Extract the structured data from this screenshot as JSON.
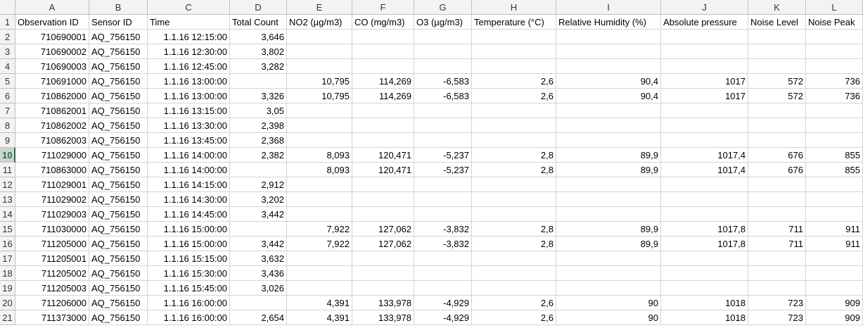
{
  "columns": [
    "A",
    "B",
    "C",
    "D",
    "E",
    "F",
    "G",
    "H",
    "I",
    "J",
    "K",
    "L"
  ],
  "row_numbers": [
    1,
    2,
    3,
    4,
    5,
    6,
    7,
    8,
    9,
    10,
    11,
    12,
    13,
    14,
    15,
    16,
    17,
    18,
    19,
    20,
    21
  ],
  "table": {
    "header": [
      "Observation ID",
      "Sensor ID",
      "Time",
      "Total Count",
      "NO2 (µg/m3)",
      "CO (mg/m3)",
      "O3 (µg/m3)",
      "Temperature (°C)",
      "Relative Humidity (%)",
      "Absolute pressure",
      "Noise Level",
      "Noise Peak"
    ],
    "rows": [
      [
        "710690001",
        "AQ_756150",
        "1.1.16 12:15:00",
        "3,646",
        null,
        null,
        null,
        null,
        null,
        null,
        null,
        null
      ],
      [
        "710690002",
        "AQ_756150",
        "1.1.16 12:30:00",
        "3,802",
        null,
        null,
        null,
        null,
        null,
        null,
        null,
        null
      ],
      [
        "710690003",
        "AQ_756150",
        "1.1.16 12:45:00",
        "3,282",
        null,
        null,
        null,
        null,
        null,
        null,
        null,
        null
      ],
      [
        "710691000",
        "AQ_756150",
        "1.1.16 13:00:00",
        null,
        "10,795",
        "114,269",
        "-6,583",
        "2,6",
        "90,4",
        "1017",
        "572",
        "736"
      ],
      [
        "710862000",
        "AQ_756150",
        "1.1.16 13:00:00",
        "3,326",
        "10,795",
        "114,269",
        "-6,583",
        "2,6",
        "90,4",
        "1017",
        "572",
        "736"
      ],
      [
        "710862001",
        "AQ_756150",
        "1.1.16 13:15:00",
        "3,05",
        null,
        null,
        null,
        null,
        null,
        null,
        null,
        null
      ],
      [
        "710862002",
        "AQ_756150",
        "1.1.16 13:30:00",
        "2,398",
        null,
        null,
        null,
        null,
        null,
        null,
        null,
        null
      ],
      [
        "710862003",
        "AQ_756150",
        "1.1.16 13:45:00",
        "2,368",
        null,
        null,
        null,
        null,
        null,
        null,
        null,
        null
      ],
      [
        "711029000",
        "AQ_756150",
        "1.1.16 14:00:00",
        "2,382",
        "8,093",
        "120,471",
        "-5,237",
        "2,8",
        "89,9",
        "1017,4",
        "676",
        "855"
      ],
      [
        "710863000",
        "AQ_756150",
        "1.1.16 14:00:00",
        null,
        "8,093",
        "120,471",
        "-5,237",
        "2,8",
        "89,9",
        "1017,4",
        "676",
        "855"
      ],
      [
        "711029001",
        "AQ_756150",
        "1.1.16 14:15:00",
        "2,912",
        null,
        null,
        null,
        null,
        null,
        null,
        null,
        null
      ],
      [
        "711029002",
        "AQ_756150",
        "1.1.16 14:30:00",
        "3,202",
        null,
        null,
        null,
        null,
        null,
        null,
        null,
        null
      ],
      [
        "711029003",
        "AQ_756150",
        "1.1.16 14:45:00",
        "3,442",
        null,
        null,
        null,
        null,
        null,
        null,
        null,
        null
      ],
      [
        "711030000",
        "AQ_756150",
        "1.1.16 15:00:00",
        null,
        "7,922",
        "127,062",
        "-3,832",
        "2,8",
        "89,9",
        "1017,8",
        "711",
        "911"
      ],
      [
        "711205000",
        "AQ_756150",
        "1.1.16 15:00:00",
        "3,442",
        "7,922",
        "127,062",
        "-3,832",
        "2,8",
        "89,9",
        "1017,8",
        "711",
        "911"
      ],
      [
        "711205001",
        "AQ_756150",
        "1.1.16 15:15:00",
        "3,632",
        null,
        null,
        null,
        null,
        null,
        null,
        null,
        null
      ],
      [
        "711205002",
        "AQ_756150",
        "1.1.16 15:30:00",
        "3,436",
        null,
        null,
        null,
        null,
        null,
        null,
        null,
        null
      ],
      [
        "711205003",
        "AQ_756150",
        "1.1.16 15:45:00",
        "3,026",
        null,
        null,
        null,
        null,
        null,
        null,
        null,
        null
      ],
      [
        "711206000",
        "AQ_756150",
        "1.1.16 16:00:00",
        null,
        "4,391",
        "133,978",
        "-4,929",
        "2,6",
        "90",
        "1018",
        "723",
        "909"
      ],
      [
        "711373000",
        "AQ_756150",
        "1.1.16 16:00:00",
        "2,654",
        "4,391",
        "133,978",
        "-4,929",
        "2,6",
        "90",
        "1018",
        "723",
        "909"
      ]
    ]
  }
}
